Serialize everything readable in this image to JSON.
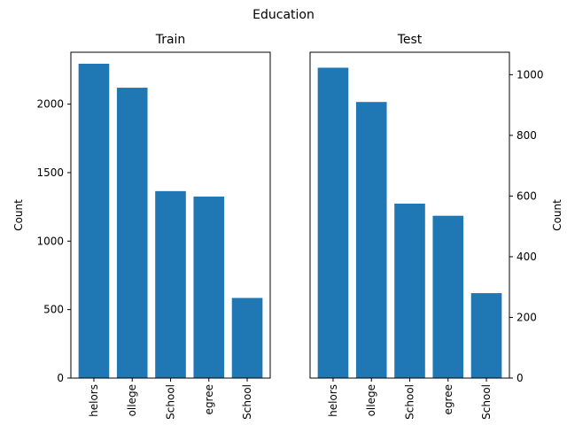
{
  "figure_title": "Education",
  "colors": {
    "bar": "#1f77b4",
    "axis": "#000000",
    "background": "#ffffff"
  },
  "chart_data": [
    {
      "type": "bar",
      "title": "Train",
      "xlabel": "",
      "ylabel": "Count",
      "y_axis_side": "left",
      "grid": false,
      "categories": [
        "helors",
        "ollege",
        "School",
        "egree",
        "School"
      ],
      "values": [
        2295,
        2120,
        1365,
        1325,
        585
      ],
      "ylim": [
        0,
        2379
      ],
      "yticks": [
        0,
        500,
        1000,
        1500,
        2000
      ]
    },
    {
      "type": "bar",
      "title": "Test",
      "xlabel": "",
      "ylabel": "Count",
      "y_axis_side": "right",
      "grid": false,
      "categories": [
        "helors",
        "ollege",
        "School",
        "egree",
        "School"
      ],
      "values": [
        1023,
        910,
        575,
        535,
        280
      ],
      "ylim": [
        0,
        1074
      ],
      "yticks": [
        0,
        200,
        400,
        600,
        800,
        1000
      ]
    }
  ]
}
